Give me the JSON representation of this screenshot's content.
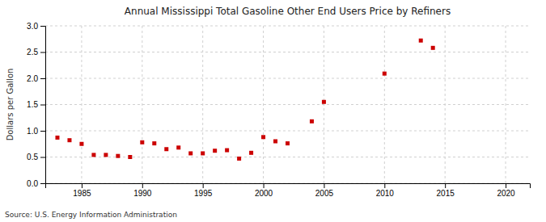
{
  "chart_data": {
    "type": "scatter",
    "title": "Annual Mississippi Total Gasoline Other End Users Price by Refiners",
    "y_label": "Dollars per Gallon",
    "annotations": [
      "Source: U.S. Energy Information Administration"
    ],
    "x": [
      1983,
      1984,
      1985,
      1986,
      1987,
      1988,
      1989,
      1990,
      1991,
      1992,
      1993,
      1994,
      1995,
      1996,
      1997,
      1998,
      1999,
      2000,
      2001,
      2002,
      2004,
      2005,
      2010,
      2013,
      2014
    ],
    "values": [
      0.87,
      0.82,
      0.75,
      0.54,
      0.54,
      0.52,
      0.5,
      0.78,
      0.76,
      0.65,
      0.68,
      0.57,
      0.57,
      0.62,
      0.63,
      0.47,
      0.58,
      0.88,
      0.8,
      0.76,
      1.18,
      1.55,
      2.09,
      2.72,
      2.58
    ],
    "color": "#cc0000",
    "marker": "square",
    "xlim": [
      1982,
      2022
    ],
    "ylim": [
      0.0,
      3.0
    ],
    "xticks": [
      1985,
      1990,
      1995,
      2000,
      2005,
      2010,
      2015,
      2020
    ],
    "yticks": [
      {
        "value": 0.0,
        "label": "0.0"
      },
      0.5,
      {
        "value": 1.0,
        "label": "1.0"
      },
      1.5,
      {
        "value": 2.0,
        "label": "2.0"
      },
      2.5,
      {
        "value": 3.0,
        "label": "3.0"
      }
    ],
    "grid": true
  }
}
